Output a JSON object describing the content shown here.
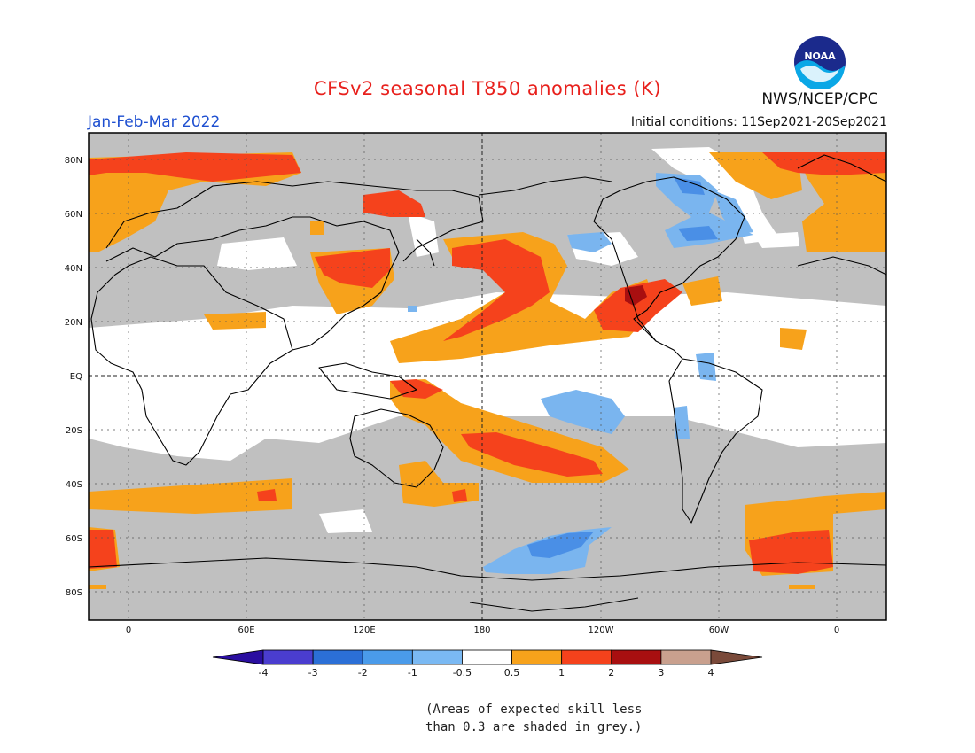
{
  "header": {
    "title": "CFSv2 seasonal T850 anomalies (K)",
    "period": "Jan-Feb-Mar 2022",
    "initial_conditions": "Initial conditions: 11Sep2021-20Sep2021",
    "agency": "NWS/NCEP/CPC",
    "logo_text": "NOAA"
  },
  "map": {
    "longitude_labels": [
      "0",
      "60E",
      "120E",
      "180",
      "120W",
      "60W",
      "0"
    ],
    "latitude_labels": [
      "80N",
      "60N",
      "40N",
      "20N",
      "EQ",
      "20S",
      "40S",
      "60S",
      "80S"
    ],
    "colors": {
      "skill_mask": "#c0c0c0",
      "neutral": "#ffffff",
      "warm_1": "#f7a21b",
      "warm_2": "#f5421c",
      "warm_3": "#a80f10",
      "cool_1": "#7ab5ef",
      "cool_2": "#4a8fe6"
    }
  },
  "colorbar": {
    "ticks": [
      "-4",
      "-3",
      "-2",
      "-1",
      "-0.5",
      "0.5",
      "1",
      "2",
      "3",
      "4"
    ],
    "colors": [
      "#2a0ea0",
      "#4a3dcf",
      "#2b6fd6",
      "#4a9bea",
      "#7ab9f3",
      "#ffffff",
      "#f7a21b",
      "#f5421c",
      "#a80f10",
      "#c9a08e",
      "#7a4a3a"
    ]
  },
  "note": {
    "line1": "(Areas of expected skill less",
    "line2": "than 0.3 are shaded in grey.)"
  }
}
